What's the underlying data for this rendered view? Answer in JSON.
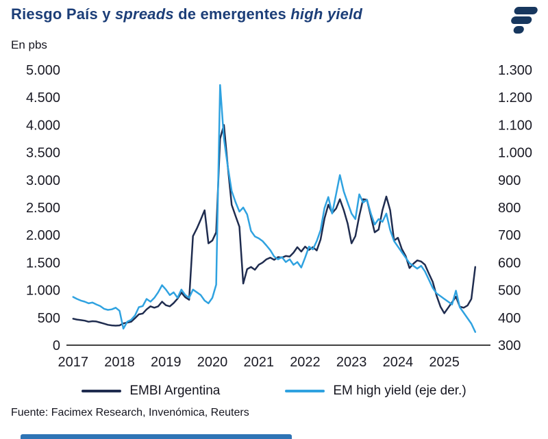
{
  "header": {
    "title_parts": {
      "p1": "Riesgo País y ",
      "p2": "spreads",
      "p3": " de emergentes ",
      "p4": "high yield"
    },
    "subtitle": "En pbs",
    "logo_icon": "facimex-logo"
  },
  "footer": {
    "source": "Fuente: Facimex Research, Invenómica, Reuters"
  },
  "colors": {
    "title": "#1c3e78",
    "logo": "#17375e",
    "embi_line": "#1f2c4f",
    "em_hy_line": "#2fa2e0",
    "footer_bar": "#2e74b5",
    "axis_text": "#1a1a24"
  },
  "chart_data": {
    "type": "line",
    "title": "Riesgo País y spreads de emergentes high yield",
    "subtitle": "En pbs",
    "grid": false,
    "legend_position": "bottom",
    "x_range": [
      2016.9,
      2025.95
    ],
    "x_ticks": [
      2017,
      2018,
      2019,
      2020,
      2021,
      2022,
      2023,
      2024,
      2025
    ],
    "left_axis": {
      "range": [
        0,
        5000
      ],
      "tick_labels": [
        "0",
        "500",
        "1.000",
        "1.500",
        "2.000",
        "2.500",
        "3.000",
        "3.500",
        "4.000",
        "4.500",
        "5.000"
      ]
    },
    "right_axis": {
      "range": [
        300,
        1300
      ],
      "tick_labels": [
        "300",
        "400",
        "500",
        "600",
        "700",
        "800",
        "900",
        "1.000",
        "1.100",
        "1.200",
        "1.300"
      ]
    },
    "series": [
      {
        "name": "EMBI Argentina",
        "axis": "left",
        "color": "#1f2c4f",
        "x_start": 2017.0,
        "x_step": 0.08333,
        "values": [
          480,
          465,
          455,
          445,
          425,
          435,
          430,
          410,
          390,
          370,
          360,
          355,
          360,
          395,
          410,
          425,
          490,
          560,
          575,
          650,
          705,
          680,
          705,
          790,
          725,
          705,
          765,
          845,
          955,
          870,
          825,
          1980,
          2120,
          2280,
          2450,
          1850,
          1900,
          2050,
          3750,
          4000,
          3250,
          2550,
          2350,
          2150,
          1120,
          1380,
          1420,
          1370,
          1460,
          1500,
          1560,
          1590,
          1550,
          1600,
          1590,
          1620,
          1610,
          1680,
          1780,
          1700,
          1790,
          1730,
          1780,
          1720,
          1920,
          2300,
          2550,
          2400,
          2480,
          2650,
          2450,
          2210,
          1850,
          1980,
          2350,
          2650,
          2640,
          2340,
          2050,
          2100,
          2450,
          2700,
          2450,
          1900,
          1950,
          1750,
          1620,
          1400,
          1480,
          1540,
          1520,
          1460,
          1300,
          1150,
          900,
          700,
          580,
          680,
          780,
          880,
          700,
          680,
          720,
          840,
          1420
        ]
      },
      {
        "name": "EM high yield (eje der.)",
        "axis": "right",
        "color": "#2fa2e0",
        "x_start": 2017.0,
        "x_step": 0.08333,
        "values": [
          475,
          468,
          462,
          458,
          452,
          455,
          448,
          442,
          432,
          428,
          430,
          436,
          425,
          360,
          385,
          392,
          408,
          438,
          442,
          468,
          458,
          472,
          492,
          518,
          502,
          482,
          492,
          472,
          502,
          482,
          472,
          502,
          492,
          482,
          462,
          452,
          472,
          520,
          1245,
          1050,
          950,
          860,
          820,
          785,
          800,
          775,
          715,
          695,
          688,
          678,
          662,
          645,
          622,
          612,
          620,
          602,
          612,
          592,
          602,
          582,
          618,
          658,
          648,
          678,
          718,
          798,
          838,
          778,
          848,
          918,
          858,
          818,
          778,
          758,
          848,
          818,
          828,
          778,
          738,
          758,
          748,
          778,
          718,
          678,
          658,
          638,
          618,
          598,
          588,
          578,
          588,
          568,
          538,
          508,
          488,
          478,
          468,
          458,
          448,
          498,
          438,
          418,
          398,
          378,
          348
        ]
      }
    ]
  }
}
